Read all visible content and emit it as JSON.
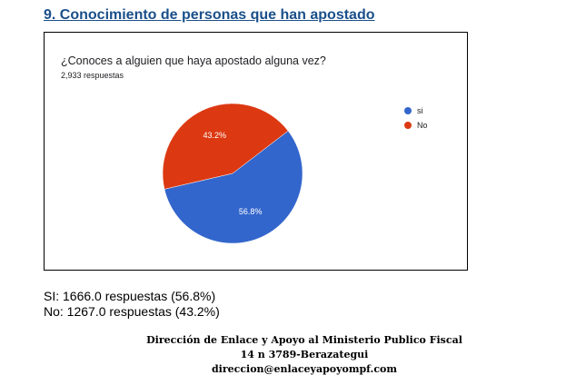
{
  "heading": "9. Conocimiento de personas que han apostado",
  "chart_data": {
    "type": "pie",
    "title": "¿Conoces a alguien que haya apostado alguna vez?",
    "subtitle": "2,933 respuestas",
    "categories": [
      "si",
      "No"
    ],
    "values": [
      56.8,
      43.2
    ],
    "data_labels": [
      "56.8%",
      "43.2%"
    ],
    "colors": [
      "#3366cc",
      "#dc3912"
    ],
    "legend_position": "right"
  },
  "summary": [
    "SI: 1666.0 respuestas (56.8%)",
    "No: 1267.0 respuestas (43.2%)"
  ],
  "footer": [
    "Dirección de Enlace y Apoyo al  Ministerio Publico Fiscal",
    "14 n 3789-Berazategui",
    "direccion@enlaceyapoyompf.com"
  ]
}
